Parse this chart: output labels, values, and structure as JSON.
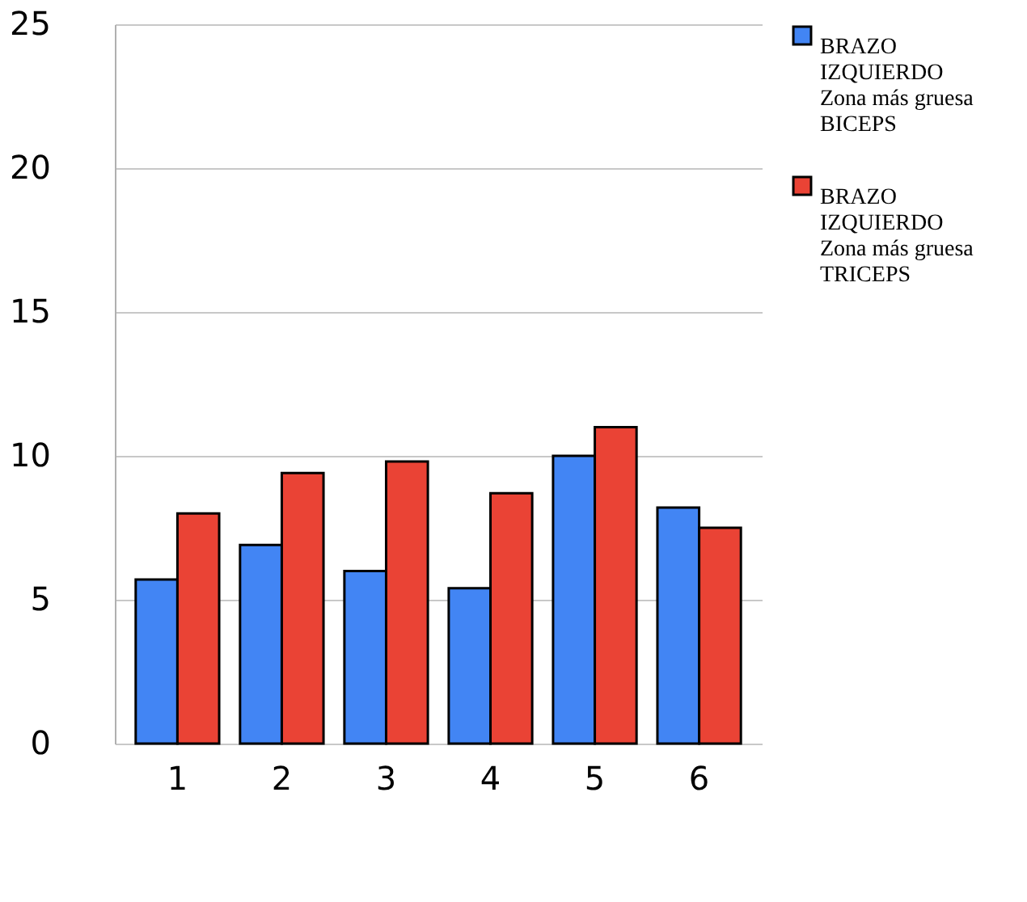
{
  "chart_data": {
    "type": "bar",
    "categories": [
      "1",
      "2",
      "3",
      "4",
      "5",
      "6"
    ],
    "series": [
      {
        "name": "BRAZO\nIZQUIERDO\nZona más gruesa\nBICEPS",
        "color": "#4285f4",
        "values": [
          5.7,
          6.9,
          6.0,
          5.4,
          10.0,
          8.2
        ]
      },
      {
        "name": "BRAZO\nIZQUIERDO\nZona más gruesa\nTRICEPS",
        "color": "#ea4335",
        "values": [
          8.0,
          9.4,
          9.8,
          8.7,
          11.0,
          7.5
        ]
      }
    ],
    "ylim": [
      0,
      25
    ],
    "yticks": [
      0,
      5,
      10,
      15,
      20,
      25
    ],
    "grid": "y",
    "legend": "right"
  }
}
